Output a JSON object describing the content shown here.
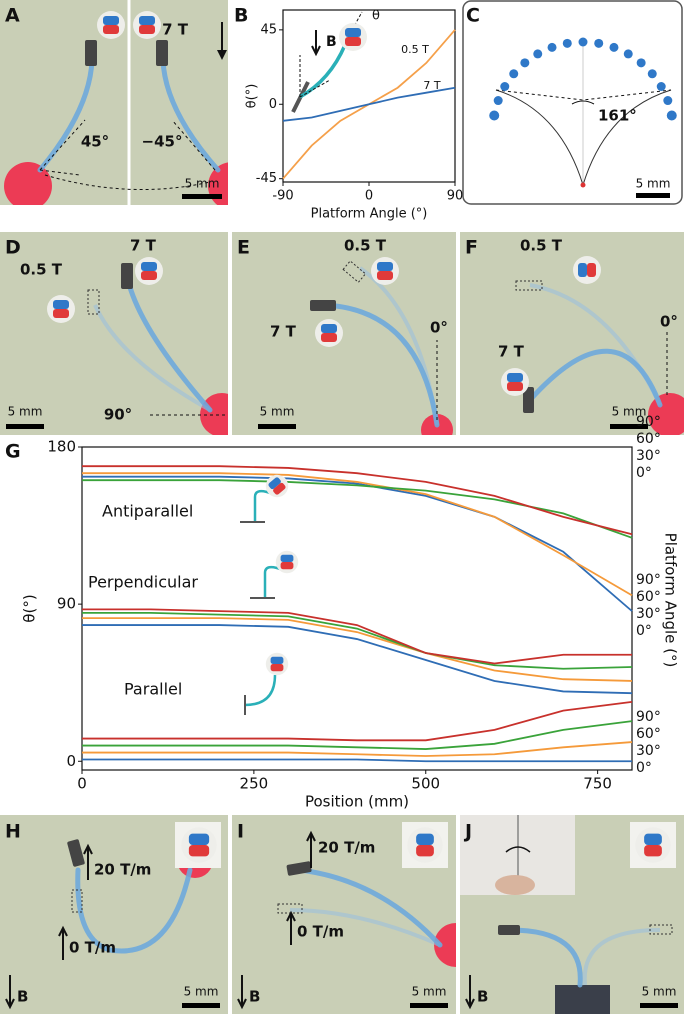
{
  "panels": {
    "A": {
      "letter": "A",
      "field": "7 T",
      "angle_left": "45°",
      "angle_right": "−45°",
      "scale": "5 mm"
    },
    "C": {
      "letter": "C",
      "angle": "161°",
      "scale": "5 mm"
    },
    "D": {
      "letter": "D",
      "field_low": "0.5 T",
      "field_high": "7 T",
      "angle": "90°",
      "scale": "5 mm"
    },
    "E": {
      "letter": "E",
      "field_low": "0.5 T",
      "field_high": "7 T",
      "angle": "0°",
      "scale": "5 mm"
    },
    "F": {
      "letter": "F",
      "field_low": "0.5 T",
      "field_high": "7 T",
      "angle": "0°",
      "scale": "5 mm"
    },
    "H": {
      "letter": "H",
      "gradient_high": "20 T/m",
      "gradient_low": "0 T/m",
      "field": "B",
      "scale": "5 mm"
    },
    "I": {
      "letter": "I",
      "gradient_high": "20 T/m",
      "gradient_low": "0 T/m",
      "field": "B",
      "scale": "5 mm"
    },
    "J": {
      "letter": "J",
      "field": "B",
      "scale": "5 mm"
    }
  },
  "chart_data": [
    {
      "type": "line",
      "panel": "B",
      "inset_field": "B",
      "inset_angle": "θ",
      "xlabel": "Platform Angle (°)",
      "ylabel": "θ(°)",
      "x": [
        -90,
        -60,
        -30,
        0,
        30,
        60,
        90
      ],
      "series": [
        {
          "name": "0.5 T",
          "color": "#f5a04a",
          "values": [
            -45,
            -25,
            -10,
            0,
            10,
            25,
            45
          ]
        },
        {
          "name": "7 T",
          "color": "#2f6db5",
          "values": [
            -10,
            -8,
            -4,
            0,
            4,
            7,
            10
          ]
        }
      ],
      "xlim": [
        -90,
        90
      ],
      "xticks": [
        -90,
        0,
        90
      ],
      "ylim": [
        -47,
        57
      ],
      "yticks": [
        -45,
        0,
        45
      ]
    },
    {
      "type": "line",
      "panel": "G",
      "xlabel": "Position (mm)",
      "ylabel": "θ(°)",
      "y2label": "Platform Angle (°)",
      "x": [
        0,
        100,
        200,
        300,
        400,
        500,
        600,
        700,
        800
      ],
      "groups": [
        {
          "name": "Antiparallel",
          "series": [
            {
              "name": "0°",
              "color": "#2f6db5",
              "values": [
                163,
                163,
                163,
                162,
                159,
                152,
                140,
                120,
                86
              ]
            },
            {
              "name": "30°",
              "color": "#f59a3a",
              "values": [
                165,
                165,
                165,
                164,
                160,
                153,
                140,
                118,
                95
              ]
            },
            {
              "name": "60°",
              "color": "#3aa33a",
              "values": [
                161,
                161,
                161,
                160,
                158,
                155,
                150,
                142,
                128
              ]
            },
            {
              "name": "90°",
              "color": "#c8312c",
              "values": [
                169,
                169,
                169,
                168,
                165,
                160,
                152,
                140,
                130
              ]
            }
          ]
        },
        {
          "name": "Perpendicular",
          "series": [
            {
              "name": "0°",
              "color": "#2f6db5",
              "values": [
                78,
                78,
                78,
                77,
                70,
                58,
                46,
                40,
                39
              ]
            },
            {
              "name": "30°",
              "color": "#f59a3a",
              "values": [
                82,
                82,
                82,
                81,
                74,
                62,
                52,
                47,
                46
              ]
            },
            {
              "name": "60°",
              "color": "#3aa33a",
              "values": [
                85,
                85,
                84,
                83,
                76,
                62,
                55,
                53,
                54
              ]
            },
            {
              "name": "90°",
              "color": "#c8312c",
              "values": [
                87,
                87,
                86,
                85,
                78,
                62,
                56,
                61,
                61
              ]
            }
          ]
        },
        {
          "name": "Parallel",
          "series": [
            {
              "name": "0°",
              "color": "#2f6db5",
              "values": [
                1,
                1,
                1,
                1,
                1,
                0,
                0,
                0,
                0
              ]
            },
            {
              "name": "30°",
              "color": "#f59a3a",
              "values": [
                5,
                5,
                5,
                5,
                4,
                3,
                4,
                8,
                11
              ]
            },
            {
              "name": "60°",
              "color": "#3aa33a",
              "values": [
                9,
                9,
                9,
                9,
                8,
                7,
                10,
                18,
                23
              ]
            },
            {
              "name": "90°",
              "color": "#c8312c",
              "values": [
                13,
                13,
                13,
                13,
                12,
                12,
                18,
                29,
                34
              ]
            }
          ]
        }
      ],
      "xlim": [
        0,
        800
      ],
      "xticks": [
        0,
        250,
        500,
        750
      ],
      "ylim": [
        -5,
        180
      ],
      "yticks": [
        0,
        90,
        180
      ]
    }
  ]
}
